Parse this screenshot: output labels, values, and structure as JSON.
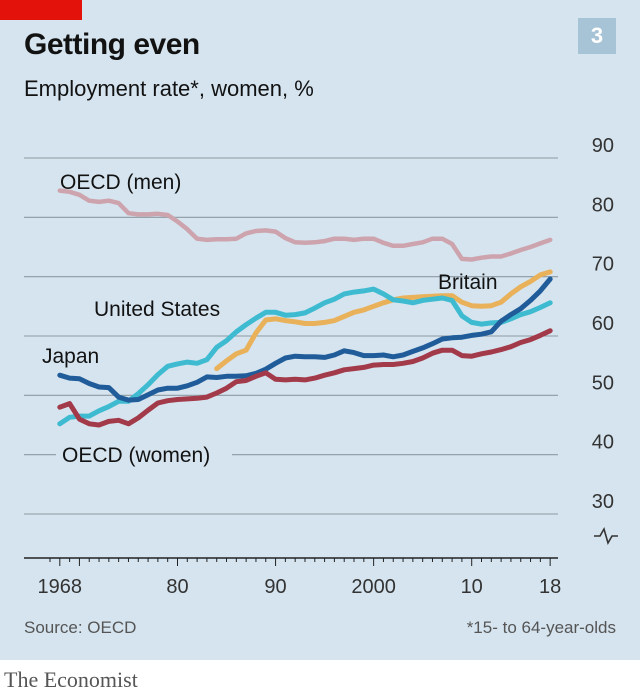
{
  "chart_number": "3",
  "title": "Getting even",
  "subtitle": "Employment rate*, women, %",
  "source": "Source: OECD",
  "footnote": "*15- to 64-year-olds",
  "brand": "The Economist",
  "chart_data": {
    "type": "line",
    "title": "Getting even",
    "ylabel": "Employment rate*, women, %",
    "xlim": [
      1967,
      2018.8
    ],
    "ylim": [
      30,
      90
    ],
    "y_axis_break": true,
    "y_ticks": [
      30,
      40,
      50,
      60,
      70,
      80,
      90
    ],
    "y_tick_labels": [
      "30",
      "40",
      "50",
      "60",
      "70",
      "80",
      "90"
    ],
    "x_ticks": [
      1968,
      1980,
      1990,
      2000,
      2010,
      2018
    ],
    "x_tick_labels": [
      "1968",
      "80",
      "90",
      "2000",
      "10",
      "18"
    ],
    "grid": "horizontal",
    "series": [
      {
        "name": "OECD (men)",
        "color": "#cda4ad",
        "x": [
          1968,
          1969,
          1970,
          1971,
          1972,
          1973,
          1974,
          1975,
          1976,
          1977,
          1978,
          1979,
          1980,
          1981,
          1982,
          1983,
          1984,
          1985,
          1986,
          1987,
          1988,
          1989,
          1990,
          1991,
          1992,
          1993,
          1994,
          1995,
          1996,
          1997,
          1998,
          1999,
          2000,
          2001,
          2002,
          2003,
          2004,
          2005,
          2006,
          2007,
          2008,
          2009,
          2010,
          2011,
          2012,
          2013,
          2014,
          2015,
          2016,
          2017,
          2018
        ],
        "y": [
          84.5,
          84.3,
          83.8,
          82.8,
          82.6,
          82.8,
          82.4,
          80.7,
          80.5,
          80.5,
          80.6,
          80.4,
          79.3,
          78,
          76.4,
          76.2,
          76.3,
          76.3,
          76.4,
          77.3,
          77.7,
          77.8,
          77.6,
          76.5,
          75.8,
          75.7,
          75.8,
          76,
          76.4,
          76.4,
          76.2,
          76.4,
          76.4,
          75.7,
          75.2,
          75.2,
          75.5,
          75.8,
          76.4,
          76.4,
          75.5,
          73,
          72.9,
          73.2,
          73.4,
          73.4,
          73.9,
          74.5,
          75,
          75.6,
          76.2
        ]
      },
      {
        "name": "Britain",
        "color": "#e8b15a",
        "x": [
          1984,
          1985,
          1986,
          1987,
          1988,
          1989,
          1990,
          1991,
          1992,
          1993,
          1994,
          1995,
          1996,
          1997,
          1998,
          1999,
          2000,
          2001,
          2002,
          2003,
          2004,
          2005,
          2006,
          2007,
          2008,
          2009,
          2010,
          2011,
          2012,
          2013,
          2014,
          2015,
          2016,
          2017,
          2018
        ],
        "y": [
          54.5,
          55.8,
          57,
          57.6,
          60.5,
          62.7,
          62.9,
          62.6,
          62.4,
          62.1,
          62.1,
          62.3,
          62.6,
          63.3,
          64,
          64.4,
          65,
          65.6,
          66.1,
          66.4,
          66.5,
          66.6,
          66.7,
          66.8,
          66.8,
          65.7,
          65.1,
          65,
          65.1,
          65.7,
          67.1,
          68.3,
          69.2,
          70.3,
          70.8
        ]
      },
      {
        "name": "United States",
        "color": "#3ebbd0",
        "x": [
          1968,
          1969,
          1970,
          1971,
          1972,
          1973,
          1974,
          1975,
          1976,
          1977,
          1978,
          1979,
          1980,
          1981,
          1982,
          1983,
          1984,
          1985,
          1986,
          1987,
          1988,
          1989,
          1990,
          1991,
          1992,
          1993,
          1994,
          1995,
          1996,
          1997,
          1998,
          1999,
          2000,
          2001,
          2002,
          2003,
          2004,
          2005,
          2006,
          2007,
          2008,
          2009,
          2010,
          2011,
          2012,
          2013,
          2014,
          2015,
          2016,
          2017,
          2018
        ],
        "y": [
          45.2,
          46.3,
          46.5,
          46.5,
          47.4,
          48.1,
          49,
          49,
          50.3,
          51.8,
          53.5,
          54.9,
          55.3,
          55.6,
          55.4,
          56,
          58.1,
          59.2,
          60.7,
          61.9,
          63,
          64,
          64,
          63.5,
          63.6,
          63.9,
          64.7,
          65.6,
          66.2,
          67.1,
          67.4,
          67.6,
          67.9,
          67.1,
          66.1,
          65.9,
          65.6,
          66,
          66.2,
          66.4,
          66,
          63.4,
          62.3,
          62,
          62.2,
          62.3,
          62.9,
          63.6,
          64.1,
          64.8,
          65.6
        ]
      },
      {
        "name": "Japan",
        "color": "#1f5c99",
        "x": [
          1968,
          1969,
          1970,
          1971,
          1972,
          1973,
          1974,
          1975,
          1976,
          1977,
          1978,
          1979,
          1980,
          1981,
          1982,
          1983,
          1984,
          1985,
          1986,
          1987,
          1988,
          1989,
          1990,
          1991,
          1992,
          1993,
          1994,
          1995,
          1996,
          1997,
          1998,
          1999,
          2000,
          2001,
          2002,
          2003,
          2004,
          2005,
          2006,
          2007,
          2008,
          2009,
          2010,
          2011,
          2012,
          2013,
          2014,
          2015,
          2016,
          2017,
          2018
        ],
        "y": [
          53.4,
          52.9,
          52.8,
          52,
          51.4,
          51.3,
          49.7,
          49.2,
          49.3,
          50.1,
          50.9,
          51.2,
          51.2,
          51.6,
          52.2,
          53.1,
          53,
          53.2,
          53.2,
          53.3,
          53.7,
          54.4,
          55.4,
          56.3,
          56.6,
          56.5,
          56.5,
          56.4,
          56.8,
          57.5,
          57.2,
          56.7,
          56.7,
          56.8,
          56.5,
          56.8,
          57.4,
          58,
          58.7,
          59.5,
          59.7,
          59.8,
          60.1,
          60.3,
          60.7,
          62.5,
          63.6,
          64.6,
          66,
          67.6,
          69.6
        ]
      },
      {
        "name": "OECD (women)",
        "color": "#a33a4a",
        "x": [
          1968,
          1969,
          1970,
          1971,
          1972,
          1973,
          1974,
          1975,
          1976,
          1977,
          1978,
          1979,
          1980,
          1981,
          1982,
          1983,
          1984,
          1985,
          1986,
          1987,
          1988,
          1989,
          1990,
          1991,
          1992,
          1993,
          1994,
          1995,
          1996,
          1997,
          1998,
          1999,
          2000,
          2001,
          2002,
          2003,
          2004,
          2005,
          2006,
          2007,
          2008,
          2009,
          2010,
          2011,
          2012,
          2013,
          2014,
          2015,
          2016,
          2017,
          2018
        ],
        "y": [
          48,
          48.6,
          46,
          45.2,
          45,
          45.6,
          45.8,
          45.2,
          46.2,
          47.5,
          48.7,
          49.1,
          49.3,
          49.4,
          49.5,
          49.7,
          50.4,
          51.2,
          52.3,
          52.5,
          53.2,
          53.8,
          52.7,
          52.6,
          52.7,
          52.6,
          52.9,
          53.4,
          53.8,
          54.3,
          54.5,
          54.7,
          55.1,
          55.2,
          55.2,
          55.4,
          55.7,
          56.3,
          57.1,
          57.6,
          57.6,
          56.7,
          56.6,
          57,
          57.3,
          57.7,
          58.2,
          58.9,
          59.4,
          60.1,
          60.9
        ]
      }
    ]
  }
}
